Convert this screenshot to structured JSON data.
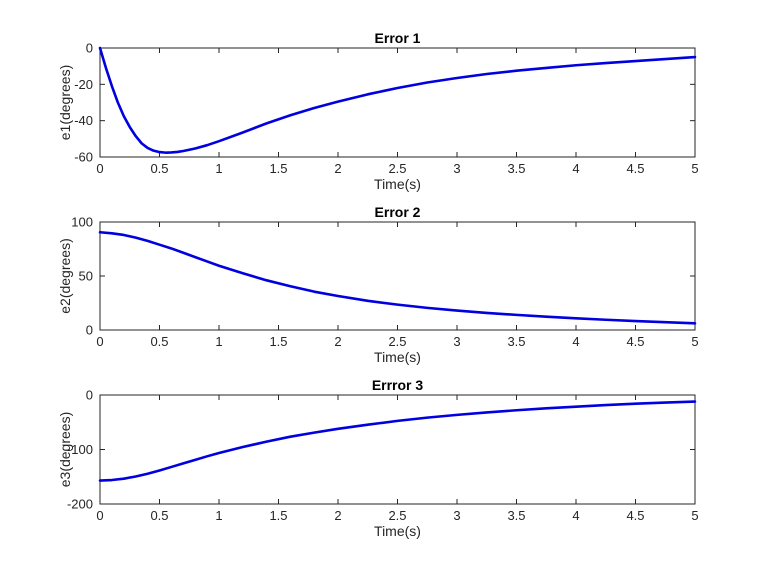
{
  "chart_data": [
    {
      "type": "line",
      "title": "Error 1",
      "xlabel": "Time(s)",
      "ylabel": "e1(degrees)",
      "xlim": [
        0,
        5
      ],
      "ylim": [
        -60,
        0
      ],
      "xticks": [
        0,
        0.5,
        1,
        1.5,
        2,
        2.5,
        3,
        3.5,
        4,
        4.5,
        5
      ],
      "yticks": [
        -60,
        -40,
        -20,
        0
      ],
      "grid": false,
      "series": [
        {
          "color": "#0000e0",
          "x": [
            0,
            0.05,
            0.1,
            0.15,
            0.2,
            0.25,
            0.3,
            0.35,
            0.4,
            0.45,
            0.5,
            0.55,
            0.6,
            0.65,
            0.7,
            0.8,
            0.9,
            1.0,
            1.2,
            1.4,
            1.6,
            1.8,
            2.0,
            2.25,
            2.5,
            2.75,
            3.0,
            3.25,
            3.5,
            3.75,
            4.0,
            4.25,
            4.5,
            4.75,
            5.0
          ],
          "y": [
            0,
            -11,
            -21,
            -30,
            -37.5,
            -43.5,
            -48.5,
            -52.5,
            -55,
            -56.5,
            -57.3,
            -57.6,
            -57.5,
            -57.2,
            -56.7,
            -55.3,
            -53.5,
            -51.3,
            -46.5,
            -41.5,
            -37.0,
            -33.0,
            -29.5,
            -25.5,
            -22.0,
            -19.0,
            -16.5,
            -14.3,
            -12.5,
            -11.0,
            -9.5,
            -8.3,
            -7.2,
            -6.1,
            -5.0
          ]
        }
      ]
    },
    {
      "type": "line",
      "title": "Error 2",
      "xlabel": "Time(s)",
      "ylabel": "e2(degrees)",
      "xlim": [
        0,
        5
      ],
      "ylim": [
        0,
        100
      ],
      "xticks": [
        0,
        0.5,
        1,
        1.5,
        2,
        2.5,
        3,
        3.5,
        4,
        4.5,
        5
      ],
      "yticks": [
        0,
        50,
        100
      ],
      "grid": false,
      "series": [
        {
          "color": "#0000e0",
          "x": [
            0,
            0.1,
            0.2,
            0.3,
            0.4,
            0.5,
            0.6,
            0.7,
            0.8,
            0.9,
            1.0,
            1.2,
            1.4,
            1.6,
            1.8,
            2.0,
            2.25,
            2.5,
            2.75,
            3.0,
            3.25,
            3.5,
            3.75,
            4.0,
            4.25,
            4.5,
            4.75,
            5.0
          ],
          "y": [
            90.5,
            89.5,
            88,
            85.5,
            82.5,
            79,
            75.5,
            71.5,
            67.5,
            63.5,
            59.5,
            52.5,
            46,
            40.5,
            35.5,
            31.5,
            27,
            23.5,
            20.5,
            18,
            15.8,
            14,
            12.3,
            10.8,
            9.5,
            8.3,
            7.2,
            6.2
          ]
        }
      ]
    },
    {
      "type": "line",
      "title": "Errror 3",
      "xlabel": "Time(s)",
      "ylabel": "e3(degrees)",
      "xlim": [
        0,
        5
      ],
      "ylim": [
        -200,
        0
      ],
      "xticks": [
        0,
        0.5,
        1,
        1.5,
        2,
        2.5,
        3,
        3.5,
        4,
        4.5,
        5
      ],
      "yticks": [
        -200,
        -100,
        0
      ],
      "grid": false,
      "series": [
        {
          "color": "#0000e0",
          "x": [
            0,
            0.1,
            0.2,
            0.3,
            0.4,
            0.5,
            0.6,
            0.7,
            0.8,
            0.9,
            1.0,
            1.2,
            1.4,
            1.6,
            1.8,
            2.0,
            2.25,
            2.5,
            2.75,
            3.0,
            3.25,
            3.5,
            3.75,
            4.0,
            4.25,
            4.5,
            4.75,
            5.0
          ],
          "y": [
            -157,
            -156,
            -153.5,
            -149.5,
            -144.5,
            -138.5,
            -132,
            -125.5,
            -119,
            -112.5,
            -106.5,
            -95.5,
            -85.5,
            -76.5,
            -69,
            -62,
            -54.5,
            -47.5,
            -41.5,
            -36.5,
            -32,
            -28,
            -24.5,
            -21.5,
            -18.5,
            -16,
            -13.8,
            -12
          ]
        }
      ]
    }
  ]
}
